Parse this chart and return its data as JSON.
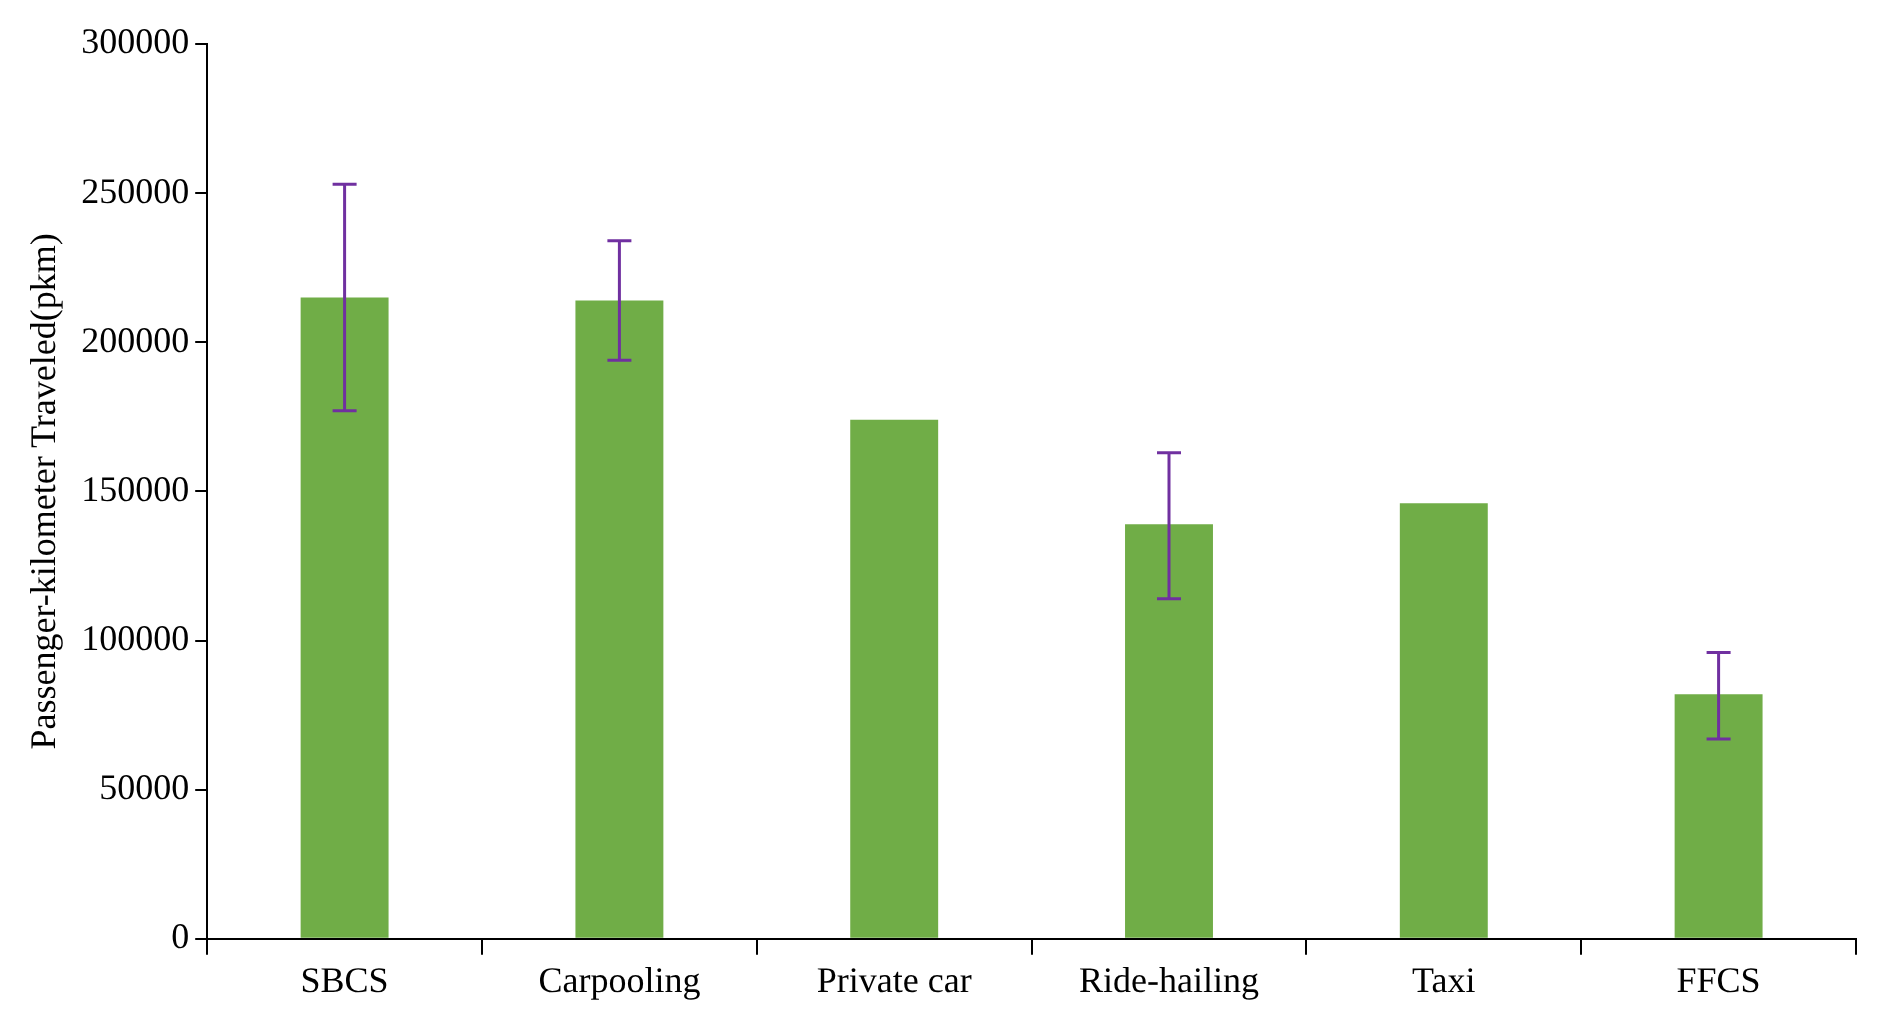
{
  "chart_data": {
    "type": "bar",
    "ylabel": "Passenger-kilometer Traveled(pkm)",
    "categories": [
      "SBCS",
      "Carpooling",
      "Private car",
      "Ride-hailing",
      "Taxi",
      "FFCS"
    ],
    "values": [
      215000,
      214000,
      174000,
      139000,
      146000,
      82000
    ],
    "errors": [
      [
        177000,
        253000
      ],
      [
        194000,
        234000
      ],
      null,
      [
        114000,
        163000
      ],
      null,
      [
        67000,
        96000
      ]
    ],
    "color": "#70ad47",
    "ylim": [
      0,
      300000
    ],
    "yticks": [
      0,
      50000,
      100000,
      150000,
      200000,
      250000,
      300000
    ]
  }
}
